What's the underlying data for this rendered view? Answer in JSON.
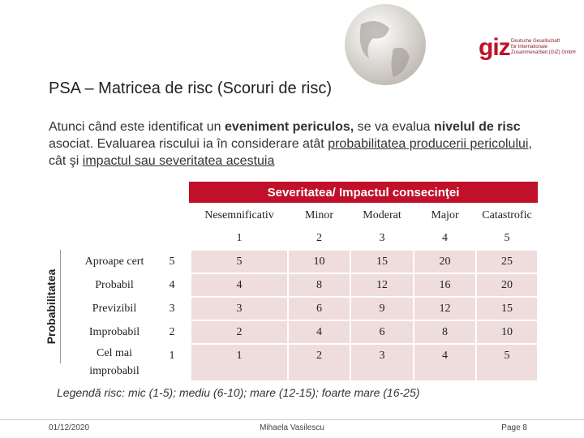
{
  "header": {
    "logo": "giz",
    "org_lines": [
      "Deutsche Gesellschaft",
      "für Internationale",
      "Zusammenarbeit (GIZ) GmbH"
    ]
  },
  "title": "PSA – Matricea de risc (Scoruri de risc)",
  "paragraph": [
    {
      "text": "Atunci când este identificat un "
    },
    {
      "text": "eveniment periculos,",
      "bold": true
    },
    {
      "text": " se va evalua "
    },
    {
      "text": "nivelul de risc",
      "bold": true
    },
    {
      "text": " asociat. Evaluarea riscului ia în considerare atât "
    },
    {
      "text": "probabilitatea producerii pericolului",
      "underline": true
    },
    {
      "text": ", cât şi  "
    },
    {
      "text": "impactul sau severitatea acestuia",
      "underline": true
    }
  ],
  "matrix": {
    "axis_top": "Severitatea/ Impactul consecinţei",
    "axis_side": "Probabilitatea",
    "columns": [
      {
        "label": "Nesemnificativ",
        "score": 1
      },
      {
        "label": "Minor",
        "score": 2
      },
      {
        "label": "Moderat",
        "score": 3
      },
      {
        "label": "Major",
        "score": 4
      },
      {
        "label": "Catastrofic",
        "score": 5
      }
    ],
    "rows": [
      {
        "label": "Aproape cert",
        "score": 5,
        "values": [
          5,
          10,
          15,
          20,
          25
        ]
      },
      {
        "label": "Probabil",
        "score": 4,
        "values": [
          4,
          8,
          12,
          16,
          20
        ]
      },
      {
        "label": "Previzibil",
        "score": 3,
        "values": [
          3,
          6,
          9,
          12,
          15
        ]
      },
      {
        "label": "Improbabil",
        "score": 2,
        "values": [
          2,
          4,
          6,
          8,
          10
        ]
      },
      {
        "label": "Cel mai improbabil",
        "score": 1,
        "values": [
          1,
          2,
          3,
          4,
          5
        ]
      }
    ]
  },
  "legend": "Legendă risc: mic (1-5); mediu (6-10); mare (12-15); foarte mare (16-25)",
  "footer": {
    "date": "01/12/2020",
    "author": "Mihaela Vasilescu",
    "page": "Page 8"
  }
}
